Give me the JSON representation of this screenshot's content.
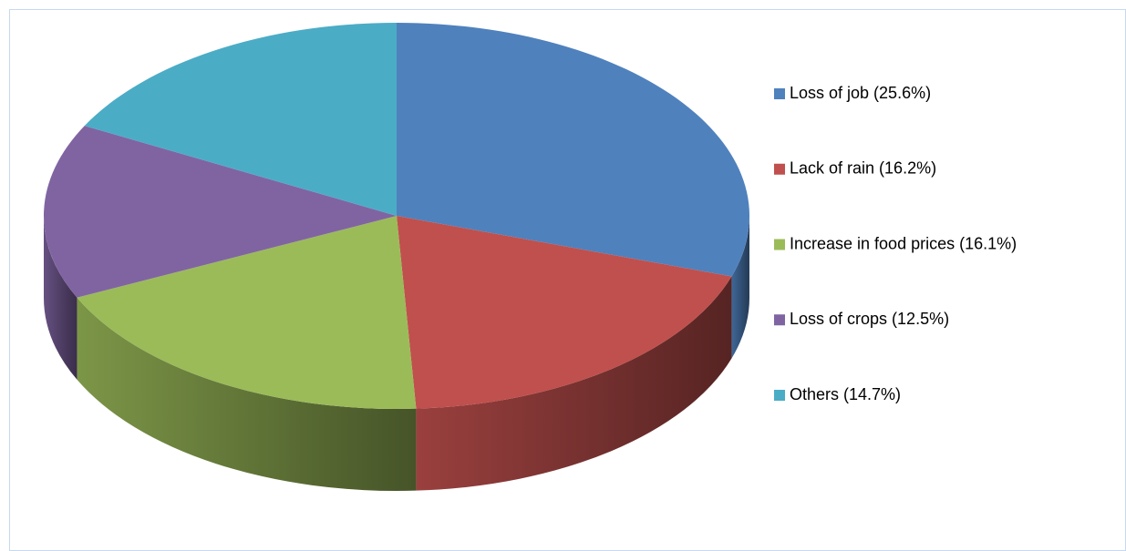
{
  "chart_data": {
    "type": "pie3d",
    "categories": [
      "Loss of job  (25.6%)",
      "Lack of rain (16.2%)",
      "Increase in food prices  (16.1%)",
      "Loss of crops  (12.5%)",
      "Others (14.7%)"
    ],
    "values": [
      25.6,
      16.2,
      16.1,
      12.5,
      14.7
    ],
    "colors": [
      "#4f81bd",
      "#c0504d",
      "#9bbb59",
      "#8064a2",
      "#4bacc6"
    ],
    "legend": "right"
  }
}
